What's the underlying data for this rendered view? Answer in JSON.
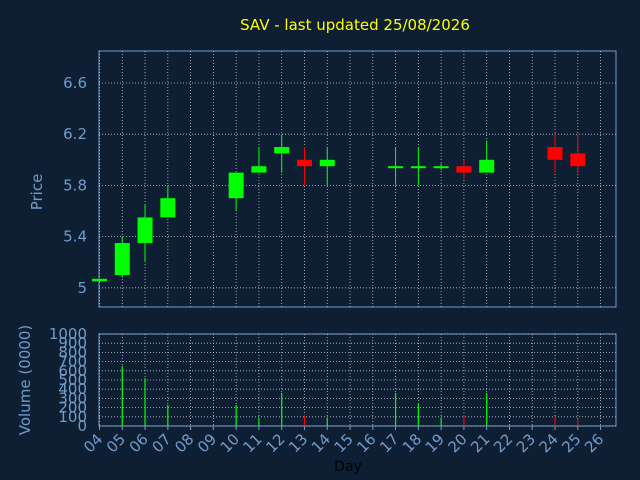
{
  "chart_data": {
    "type": "candlestick",
    "title": "SAV - last updated 25/08/2026",
    "xlabel": "Day",
    "price_panel": {
      "ylabel": "Price",
      "yticks": [
        "6.6",
        "6.2",
        "5.8",
        "5.4",
        "5"
      ],
      "ylim": [
        4.85,
        6.85
      ]
    },
    "volume_panel": {
      "ylabel": "Volume (0000)",
      "yticks": [
        "1000",
        "900",
        "800",
        "700",
        "600",
        "500",
        "400",
        "300",
        "200",
        "100",
        "0"
      ],
      "ylim": [
        0,
        1000
      ]
    },
    "categories": [
      "04",
      "05",
      "06",
      "07",
      "08",
      "09",
      "10",
      "11",
      "12",
      "13",
      "14",
      "15",
      "16",
      "17",
      "18",
      "19",
      "20",
      "21",
      "22",
      "23",
      "24",
      "25",
      "26"
    ],
    "colors": {
      "up": "#00ff00",
      "down": "#ff0000",
      "neutral": "#00ff00",
      "title": "#ffff00",
      "axis": "#6f9ccb"
    },
    "candles": [
      {
        "day": "04",
        "open": 5.05,
        "high": 5.07,
        "low": 5.04,
        "close": 5.07
      },
      {
        "day": "05",
        "open": 5.1,
        "high": 5.4,
        "low": 5.08,
        "close": 5.35
      },
      {
        "day": "06",
        "open": 5.35,
        "high": 5.65,
        "low": 5.2,
        "close": 5.55
      },
      {
        "day": "07",
        "open": 5.55,
        "high": 5.8,
        "low": 5.55,
        "close": 5.7
      },
      {
        "day": "10",
        "open": 5.7,
        "high": 5.9,
        "low": 5.6,
        "close": 5.9
      },
      {
        "day": "11",
        "open": 5.9,
        "high": 6.1,
        "low": 5.9,
        "close": 5.95
      },
      {
        "day": "12",
        "open": 6.05,
        "high": 6.2,
        "low": 5.9,
        "close": 6.1
      },
      {
        "day": "13",
        "open": 6.0,
        "high": 6.1,
        "low": 5.8,
        "close": 5.95
      },
      {
        "day": "14",
        "open": 5.95,
        "high": 6.1,
        "low": 5.8,
        "close": 6.0
      },
      {
        "day": "17",
        "open": 5.95,
        "high": 6.1,
        "low": 5.8,
        "close": 5.95
      },
      {
        "day": "18",
        "open": 5.95,
        "high": 6.1,
        "low": 5.8,
        "close": 5.95
      },
      {
        "day": "19",
        "open": 5.95,
        "high": 5.97,
        "low": 5.92,
        "close": 5.95
      },
      {
        "day": "20",
        "open": 5.95,
        "high": 6.0,
        "low": 5.85,
        "close": 5.9
      },
      {
        "day": "21",
        "open": 5.9,
        "high": 6.15,
        "low": 5.9,
        "close": 6.0
      },
      {
        "day": "24",
        "open": 6.1,
        "high": 6.2,
        "low": 5.9,
        "close": 6.0
      },
      {
        "day": "25",
        "open": 6.05,
        "high": 6.2,
        "low": 5.9,
        "close": 5.95
      }
    ],
    "volumes": [
      {
        "day": "04",
        "value": 10,
        "direction": "up"
      },
      {
        "day": "05",
        "value": 650,
        "direction": "up"
      },
      {
        "day": "06",
        "value": 520,
        "direction": "up"
      },
      {
        "day": "07",
        "value": 230,
        "direction": "up"
      },
      {
        "day": "10",
        "value": 230,
        "direction": "up"
      },
      {
        "day": "11",
        "value": 90,
        "direction": "up"
      },
      {
        "day": "12",
        "value": 360,
        "direction": "up"
      },
      {
        "day": "13",
        "value": 120,
        "direction": "down"
      },
      {
        "day": "14",
        "value": 90,
        "direction": "up"
      },
      {
        "day": "17",
        "value": 360,
        "direction": "up"
      },
      {
        "day": "18",
        "value": 240,
        "direction": "up"
      },
      {
        "day": "19",
        "value": 90,
        "direction": "up"
      },
      {
        "day": "20",
        "value": 120,
        "direction": "down"
      },
      {
        "day": "21",
        "value": 360,
        "direction": "up"
      },
      {
        "day": "24",
        "value": 100,
        "direction": "down"
      },
      {
        "day": "25",
        "value": 70,
        "direction": "down"
      }
    ],
    "grid": true
  }
}
